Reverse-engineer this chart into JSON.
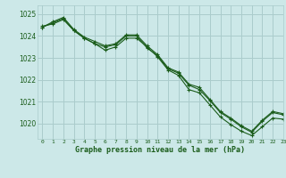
{
  "title": "Graphe pression niveau de la mer (hPa)",
  "background_color": "#cce8e8",
  "grid_color": "#aacccc",
  "line_color": "#1a5c1a",
  "marker_color": "#1a5c1a",
  "xlim": [
    -0.5,
    23
  ],
  "ylim": [
    1019.3,
    1025.4
  ],
  "yticks": [
    1020,
    1021,
    1022,
    1023,
    1024,
    1025
  ],
  "xticks": [
    0,
    1,
    2,
    3,
    4,
    5,
    6,
    7,
    8,
    9,
    10,
    11,
    12,
    13,
    14,
    15,
    16,
    17,
    18,
    19,
    20,
    21,
    22,
    23
  ],
  "series": [
    {
      "x": [
        0,
        1,
        2,
        3,
        4,
        5,
        6,
        7,
        8,
        9,
        10,
        11,
        12,
        13,
        14,
        15,
        16,
        17,
        18,
        19,
        20,
        21,
        22,
        23
      ],
      "y": [
        1024.4,
        1024.6,
        1024.8,
        1024.25,
        1023.9,
        1023.65,
        1023.5,
        1023.6,
        1024.0,
        1024.0,
        1023.45,
        1023.1,
        1022.5,
        1022.3,
        1021.75,
        1021.55,
        1021.05,
        1020.5,
        1020.2,
        1019.85,
        1019.6,
        1020.1,
        1020.5,
        1020.4
      ]
    },
    {
      "x": [
        0,
        1,
        2,
        3,
        4,
        5,
        6,
        7,
        8,
        9,
        10,
        11,
        12,
        13,
        14,
        15,
        16,
        17,
        18,
        19,
        20,
        21,
        22,
        23
      ],
      "y": [
        1024.4,
        1024.65,
        1024.85,
        1024.3,
        1023.95,
        1023.75,
        1023.55,
        1023.65,
        1024.05,
        1024.05,
        1023.55,
        1023.15,
        1022.55,
        1022.35,
        1021.8,
        1021.65,
        1021.1,
        1020.55,
        1020.25,
        1019.9,
        1019.65,
        1020.15,
        1020.55,
        1020.45
      ]
    },
    {
      "x": [
        0,
        1,
        2,
        3,
        4,
        5,
        6,
        7,
        8,
        9,
        10,
        11,
        12,
        13,
        14,
        15,
        16,
        17,
        18,
        19,
        20,
        21,
        22,
        23
      ],
      "y": [
        1024.45,
        1024.55,
        1024.75,
        1024.25,
        1023.9,
        1023.65,
        1023.35,
        1023.5,
        1023.9,
        1023.9,
        1023.5,
        1023.05,
        1022.45,
        1022.2,
        1021.55,
        1021.4,
        1020.85,
        1020.3,
        1019.95,
        1019.65,
        1019.45,
        1019.85,
        1020.25,
        1020.2
      ]
    }
  ]
}
